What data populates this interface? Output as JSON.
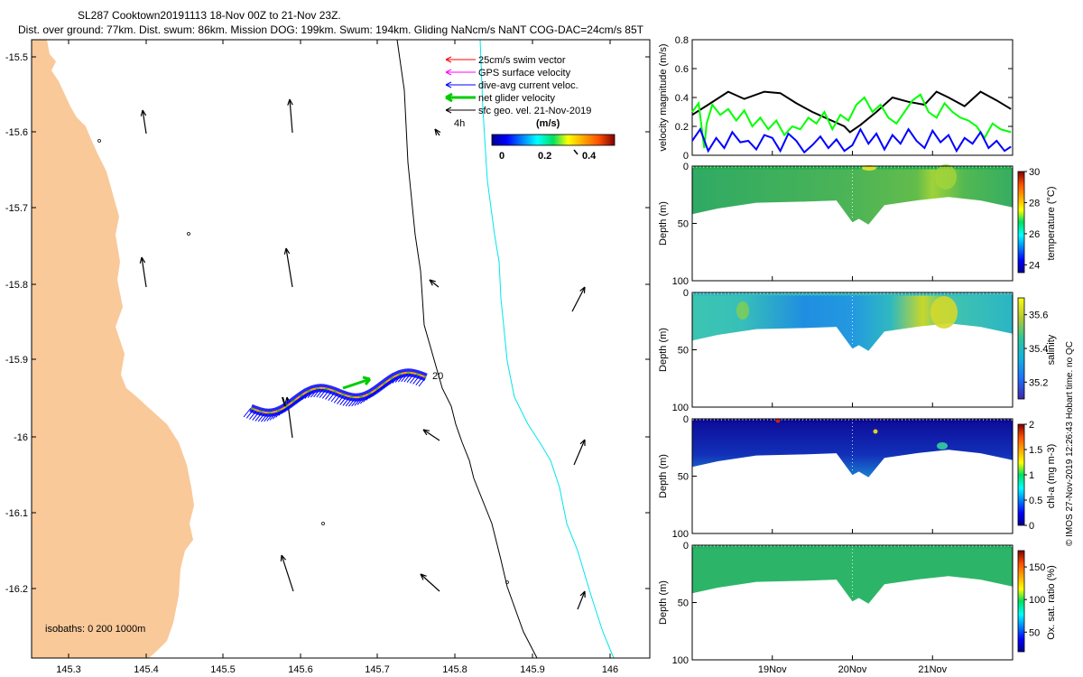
{
  "header": {
    "line1": "SL287 Cooktown20191113 18-Nov 00Z to 21-Nov 23Z.",
    "line2": "Dist. over ground: 77km. Dist. swum: 86km. Mission DOG: 199km. Swum: 194km. Gliding NaNcm/s NaNT COG-DAC=24cm/s 85T"
  },
  "colors": {
    "land": "#f9c99a",
    "isobath_200": "#000000",
    "isobath_1000": "#00e5ee",
    "swim_vector": "#ff0000",
    "gps_velocity": "#ff00ff",
    "dive_avg": "#0000ff",
    "net_velocity": "#00cc00",
    "sfc_geo": "#000000"
  },
  "map": {
    "y_ticks": [
      "-15.5",
      "-15.6",
      "-15.7",
      "-15.8",
      "-15.9",
      "-16",
      "-16.1",
      "-16.2"
    ],
    "x_ticks": [
      "145.3",
      "145.4",
      "145.5",
      "145.6",
      "145.7",
      "145.8",
      "145.9",
      "146"
    ],
    "legend": {
      "swim": "25cm/s swim vector",
      "gps": "GPS surface velocity",
      "dive": "dive-avg current veloc.",
      "net": "net glider velocity",
      "sfc": "sfc geo. vel. 21-Nov-2019"
    },
    "colorbar": {
      "unit": "(m/s)",
      "ticks": [
        "0",
        "0.2",
        "0.4"
      ],
      "hours": "4h"
    },
    "day_label": "20",
    "isobaths_label": "isobaths: 0   200  1000m"
  },
  "chart_data": [
    {
      "type": "line",
      "title": "",
      "ylabel": "velocity magnitude (m/s)",
      "ylim": [
        0,
        0.8
      ],
      "yticks": [
        "0",
        "0.2",
        "0.4",
        "0.6",
        "0.8"
      ],
      "x_days": [
        18,
        22
      ],
      "series": [
        {
          "name": "sfc geo. vel.",
          "color": "#000000",
          "x": [
            18.0,
            18.2,
            18.45,
            18.65,
            18.9,
            19.1,
            19.3,
            19.5,
            19.7,
            19.9,
            19.97,
            20.1,
            20.3,
            20.5,
            20.7,
            20.9,
            21.05,
            21.2,
            21.4,
            21.6,
            21.8,
            21.98
          ],
          "values": [
            0.28,
            0.35,
            0.44,
            0.39,
            0.44,
            0.43,
            0.36,
            0.3,
            0.25,
            0.2,
            0.16,
            0.21,
            0.3,
            0.4,
            0.37,
            0.35,
            0.44,
            0.4,
            0.34,
            0.44,
            0.38,
            0.32
          ]
        },
        {
          "name": "net glider velocity",
          "color": "#00ff00",
          "x": [
            18.0,
            18.08,
            18.15,
            18.18,
            18.25,
            18.35,
            18.45,
            18.55,
            18.65,
            18.75,
            18.85,
            18.95,
            19.05,
            19.15,
            19.25,
            19.35,
            19.45,
            19.55,
            19.65,
            19.75,
            19.85,
            19.95,
            20.05,
            20.15,
            20.25,
            20.35,
            20.45,
            20.55,
            20.65,
            20.75,
            20.85,
            20.95,
            21.05,
            21.15,
            21.25,
            21.35,
            21.45,
            21.55,
            21.65,
            21.75,
            21.85,
            21.98
          ],
          "values": [
            0.3,
            0.36,
            0.05,
            0.22,
            0.35,
            0.28,
            0.32,
            0.24,
            0.31,
            0.2,
            0.26,
            0.18,
            0.24,
            0.14,
            0.2,
            0.18,
            0.26,
            0.22,
            0.3,
            0.18,
            0.28,
            0.24,
            0.35,
            0.4,
            0.3,
            0.35,
            0.26,
            0.22,
            0.3,
            0.38,
            0.42,
            0.3,
            0.26,
            0.36,
            0.3,
            0.26,
            0.24,
            0.2,
            0.12,
            0.22,
            0.18,
            0.16
          ]
        },
        {
          "name": "dive-avg current veloc.",
          "color": "#0000ff",
          "x": [
            18.0,
            18.1,
            18.2,
            18.3,
            18.4,
            18.5,
            18.6,
            18.7,
            18.8,
            18.9,
            19.0,
            19.1,
            19.2,
            19.3,
            19.4,
            19.5,
            19.6,
            19.7,
            19.8,
            19.9,
            20.0,
            20.1,
            20.2,
            20.3,
            20.4,
            20.5,
            20.6,
            20.7,
            20.8,
            20.9,
            21.0,
            21.1,
            21.2,
            21.3,
            21.4,
            21.5,
            21.6,
            21.7,
            21.8,
            21.9,
            21.98
          ],
          "values": [
            0.1,
            0.18,
            0.03,
            0.12,
            0.05,
            0.16,
            0.09,
            0.1,
            0.04,
            0.14,
            0.12,
            0.03,
            0.15,
            0.1,
            0.02,
            0.07,
            0.13,
            0.05,
            0.11,
            0.03,
            0.07,
            0.18,
            0.08,
            0.15,
            0.04,
            0.14,
            0.08,
            0.18,
            0.1,
            0.05,
            0.17,
            0.09,
            0.14,
            0.03,
            0.12,
            0.08,
            0.16,
            0.05,
            0.1,
            0.03,
            0.06
          ]
        }
      ]
    },
    {
      "type": "heatmap",
      "ylabel": "Depth (m)",
      "colorbar_label": "temperature (°C)",
      "yticks": [
        "0",
        "50",
        "100"
      ],
      "cbar_ticks": [
        "24",
        "26",
        "28",
        "30"
      ],
      "cbar_range": [
        23.5,
        30
      ]
    },
    {
      "type": "heatmap",
      "ylabel": "Depth (m)",
      "colorbar_label": "salinity",
      "yticks": [
        "0",
        "50",
        "100"
      ],
      "cbar_ticks": [
        "35.2",
        "35.4",
        "35.6"
      ],
      "cbar_range": [
        35.1,
        35.7
      ]
    },
    {
      "type": "heatmap",
      "ylabel": "Depth (m)",
      "colorbar_label": "chl-a (mg m-3)",
      "yticks": [
        "0",
        "50",
        "100"
      ],
      "cbar_ticks": [
        "0",
        "0.5",
        "1",
        "1.5",
        "2"
      ],
      "cbar_range": [
        0,
        2
      ]
    },
    {
      "type": "heatmap",
      "ylabel": "Depth (m)",
      "colorbar_label": "Ox. sat. ratio (%)",
      "yticks": [
        "0",
        "50",
        "100"
      ],
      "cbar_ticks": [
        "50",
        "100",
        "150"
      ],
      "cbar_range": [
        20,
        175
      ],
      "xticks": [
        "19Nov",
        "20Nov",
        "21Nov"
      ]
    }
  ],
  "credit": "© IMOS 27-Nov-2019 12:26:43 Hobart time. no QC"
}
